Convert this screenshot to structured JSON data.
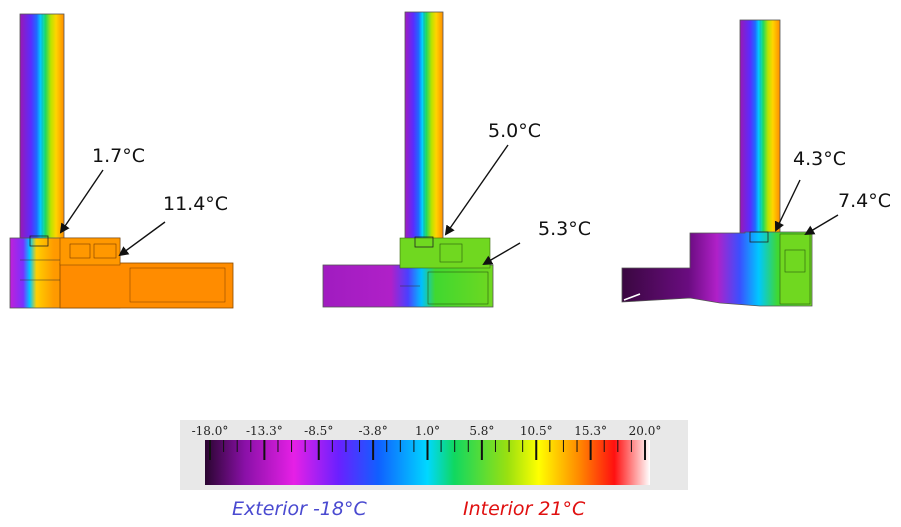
{
  "sections": [
    {
      "labels": [
        {
          "text": "1.7°C"
        },
        {
          "text": "11.4°C"
        }
      ]
    },
    {
      "labels": [
        {
          "text": "5.0°C"
        },
        {
          "text": "5.3°C"
        }
      ]
    },
    {
      "labels": [
        {
          "text": "4.3°C"
        },
        {
          "text": "7.4°C"
        }
      ]
    }
  ],
  "scale": {
    "ticks": [
      "-18.0°",
      "-13.3°",
      "-8.5°",
      "-3.8°",
      "1.0°",
      "5.8°",
      "10.5°",
      "15.3°",
      "20.0°"
    ],
    "colors": [
      "#2a0530",
      "#8a10a8",
      "#e620e6",
      "#6a20ff",
      "#1060ff",
      "#00d8ff",
      "#10d860",
      "#9ae010",
      "#ffff00",
      "#ff8a00",
      "#ff1010",
      "#ffffff"
    ]
  },
  "legend": {
    "exterior": "Exterior -18°C",
    "interior": "Interior 21°C",
    "exterior_color": "#4a4ad0",
    "interior_color": "#e01010"
  }
}
